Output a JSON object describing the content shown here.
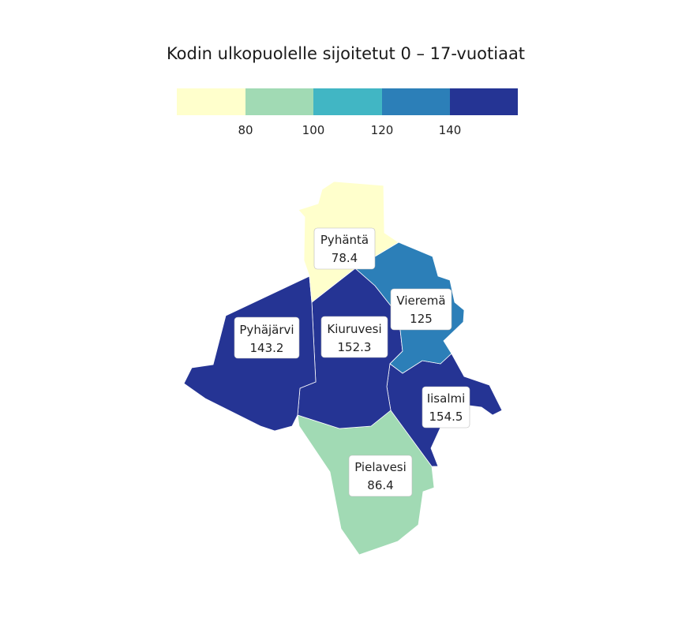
{
  "title": "Kodin ulkopuolelle sijoitetut 0 – 17-vuotiaat",
  "legend": {
    "colors": [
      "#ffffcc",
      "#a1dab4",
      "#41b6c4",
      "#2c7fb8",
      "#253494"
    ],
    "ticks": [
      "80",
      "100",
      "120",
      "140"
    ]
  },
  "regions": [
    {
      "name": "Pyhäntä",
      "value": "78.4",
      "color": "#ffffcc"
    },
    {
      "name": "Vieremä",
      "value": "125",
      "color": "#2c7fb8"
    },
    {
      "name": "Pyhäjärvi",
      "value": "143.2",
      "color": "#253494"
    },
    {
      "name": "Kiuruvesi",
      "value": "152.3",
      "color": "#253494"
    },
    {
      "name": "Iisalmi",
      "value": "154.5",
      "color": "#253494"
    },
    {
      "name": "Pielavesi",
      "value": "86.4",
      "color": "#a1dab4"
    }
  ]
}
